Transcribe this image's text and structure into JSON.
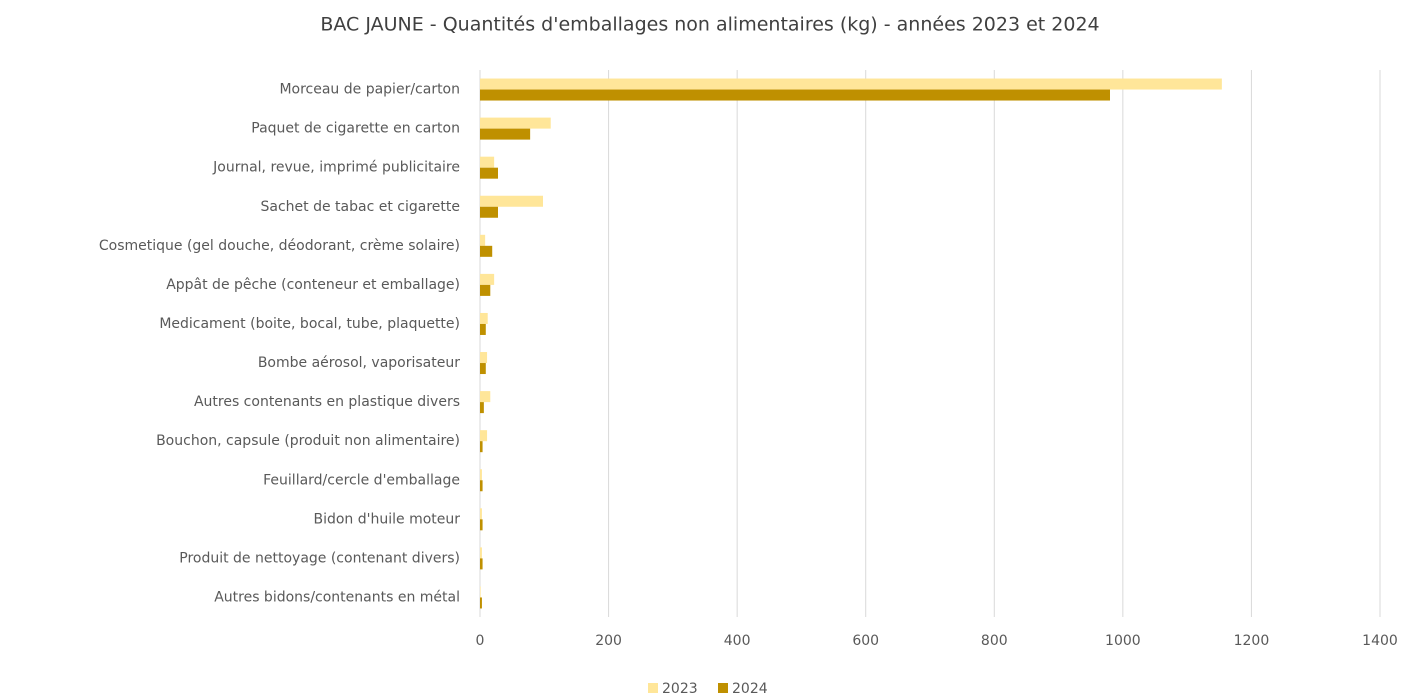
{
  "chart_data": {
    "type": "bar",
    "orientation": "horizontal",
    "title": "BAC JAUNE - Quantités d'emballages non alimentaires (kg) - années 2023 et 2024",
    "categories": [
      "Morceau de papier/carton",
      "Paquet de cigarette en carton",
      "Journal, revue, imprimé publicitaire",
      "Sachet de tabac et cigarette",
      "Cosmetique (gel douche, déodorant, crème solaire)",
      "Appât de pêche (conteneur et emballage)",
      "Medicament (boite, bocal, tube, plaquette)",
      "Bombe aérosol, vaporisateur",
      "Autres contenants en plastique divers",
      "Bouchon, capsule (produit non alimentaire)",
      "Feuillard/cercle d'emballage",
      "Bidon d'huile moteur",
      "Produit de nettoyage (contenant divers)",
      "Autres bidons/contenants en métal"
    ],
    "series": [
      {
        "name": "2023",
        "color": "#ffe699",
        "values": [
          1154,
          110,
          22,
          98,
          8,
          22,
          12,
          11,
          16,
          11,
          3,
          3,
          3,
          1
        ]
      },
      {
        "name": "2024",
        "color": "#bf9000",
        "values": [
          980,
          78,
          28,
          28,
          19,
          16,
          9,
          9,
          6,
          4,
          4,
          4,
          4,
          3
        ]
      }
    ],
    "xlim": [
      0,
      1400
    ],
    "xticks": [
      0,
      200,
      400,
      600,
      800,
      1000,
      1200,
      1400
    ],
    "grid": true,
    "legend": "bottom"
  }
}
